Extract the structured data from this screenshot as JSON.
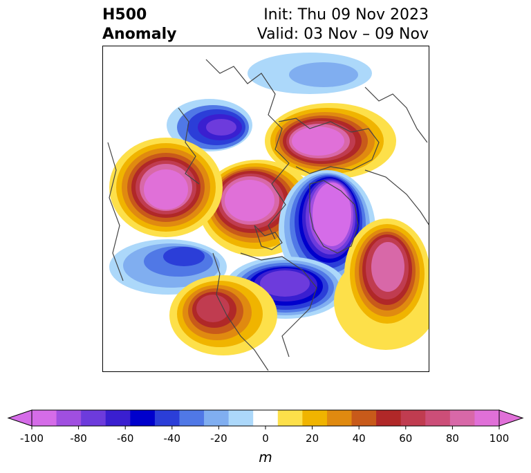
{
  "title": {
    "left_line1": "H500",
    "left_line2": "Anomaly",
    "right_line1": "Init: Thu 09 Nov 2023",
    "right_line2": "Valid: 03 Nov – 09 Nov"
  },
  "colorbar": {
    "ticks": [
      "-100",
      "-80",
      "-60",
      "-40",
      "-20",
      "0",
      "20",
      "40",
      "60",
      "80",
      "100"
    ],
    "unit": "m",
    "colors": [
      "#d56ce8",
      "#a04fe0",
      "#6d3bdc",
      "#3a1fd0",
      "#0000cc",
      "#2b3ed8",
      "#5078e6",
      "#80aef0",
      "#acd8fa",
      "#ffffff",
      "#fde04a",
      "#f0b400",
      "#e08a10",
      "#c85a1a",
      "#b02828",
      "#c03c50",
      "#cc4e78",
      "#d868a8",
      "#e070d8"
    ]
  },
  "map": {
    "projection": "polar-stereographic",
    "anomalies": [
      {
        "name": "negative-anomaly-hudson-bay",
        "sign": "negative",
        "value": -70
      },
      {
        "name": "positive-anomaly-north-atlantic",
        "sign": "positive",
        "value": 100
      },
      {
        "name": "positive-anomaly-arctic",
        "sign": "positive",
        "value": 100
      },
      {
        "name": "positive-anomaly-bering-sea",
        "sign": "positive",
        "value": 100
      },
      {
        "name": "negative-anomaly-siberia",
        "sign": "negative",
        "value": -100
      },
      {
        "name": "negative-anomaly-east-asia",
        "sign": "negative",
        "value": -80
      },
      {
        "name": "positive-anomaly-central-asia",
        "sign": "positive",
        "value": 80
      },
      {
        "name": "negative-anomaly-north-pacific",
        "sign": "negative",
        "value": -50
      },
      {
        "name": "positive-anomaly-western-us",
        "sign": "positive",
        "value": 70
      }
    ]
  }
}
